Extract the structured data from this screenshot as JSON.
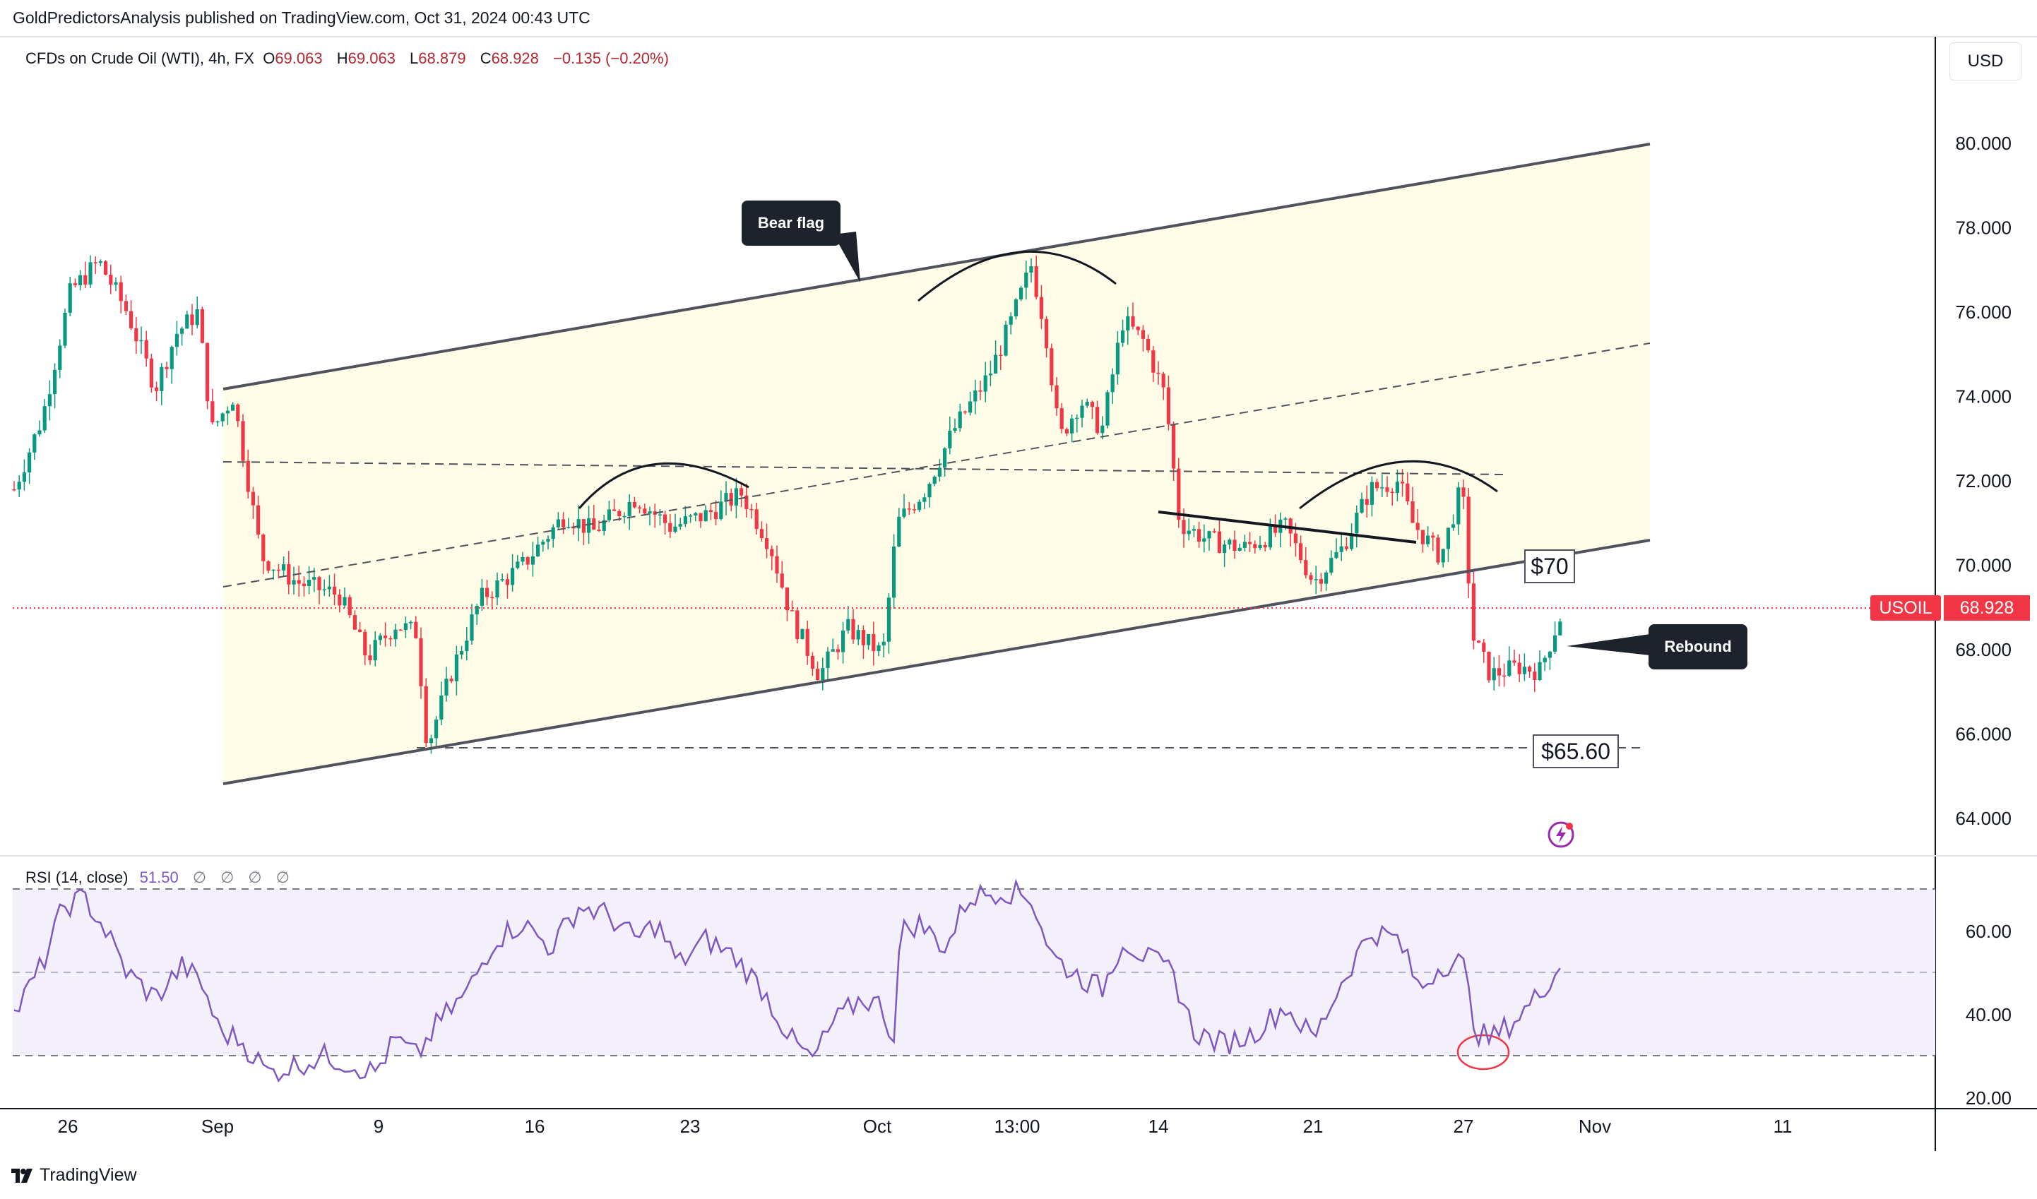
{
  "header": {
    "publisher_line": "GoldPredictorsAnalysis published on TradingView.com, Oct 31, 2024 00:43 UTC"
  },
  "legend": {
    "symbol": "CFDs on Crude Oil (WTI), 4h, FX",
    "open_label": "O",
    "open": "69.063",
    "high_label": "H",
    "high": "69.063",
    "low_label": "L",
    "low": "68.879",
    "close_label": "C",
    "close": "68.928",
    "change": "−0.135 (−0.20%)"
  },
  "rsi_legend": {
    "label": "RSI (14, close)",
    "value": "51.50",
    "nan_values": [
      "∅",
      "∅",
      "∅",
      "∅"
    ]
  },
  "currency": "USD",
  "price_axis": [
    "80.000",
    "78.000",
    "76.000",
    "74.000",
    "72.000",
    "70.000",
    "68.000",
    "66.000",
    "64.000"
  ],
  "rsi_axis": [
    "60.00",
    "40.00",
    "20.00"
  ],
  "time_axis": [
    "26",
    "Sep",
    "9",
    "16",
    "23",
    "Oct",
    "13:00",
    "14",
    "21",
    "27",
    "Nov",
    "11"
  ],
  "current_price": {
    "symbol": "USOIL",
    "price": "68.928",
    "color": "#f23645"
  },
  "annotations": {
    "bear_flag": "Bear flag",
    "rebound": "Rebound",
    "level_70": "$70",
    "level_6560": "$65.60"
  },
  "colors": {
    "up": "#089981",
    "down": "#f23645",
    "rsi_line": "#7e57c2",
    "rsi_band": "#f3f0fb",
    "channel_fill": "#fffde7"
  },
  "footer": {
    "brand": "TradingView"
  }
}
